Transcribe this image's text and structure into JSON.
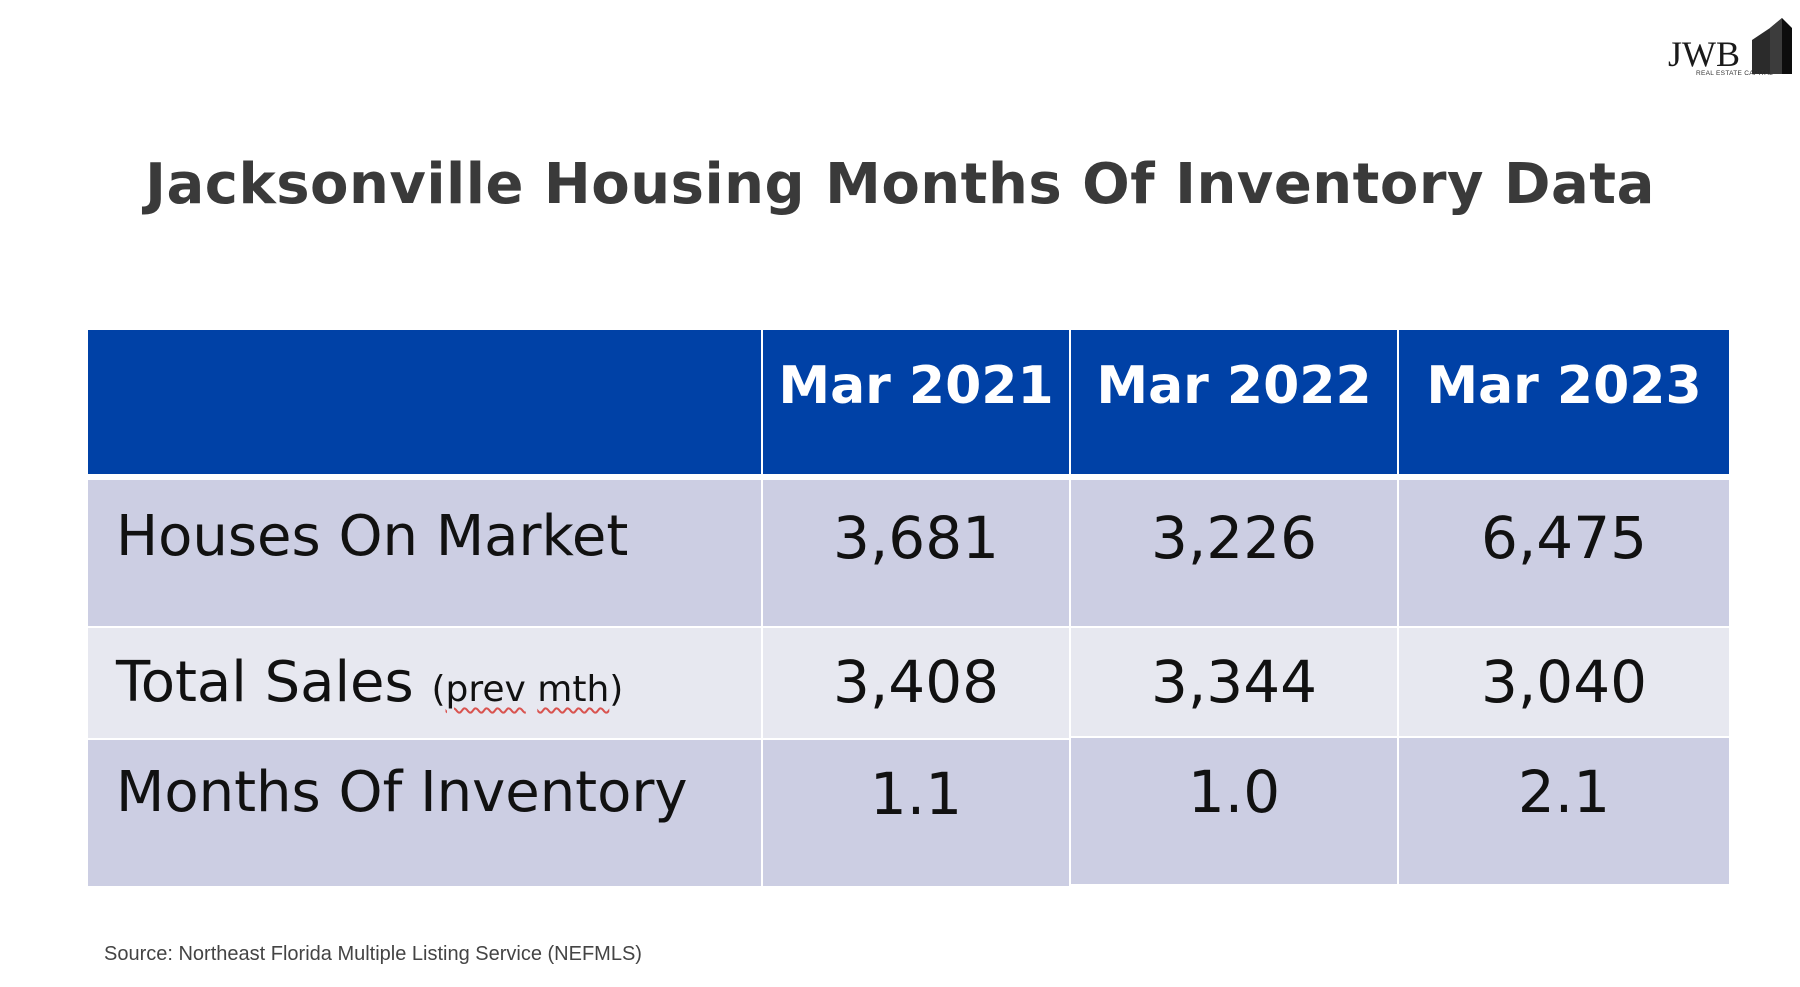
{
  "logo": {
    "text": "JWB",
    "subtext": "REAL ESTATE CAPITAL"
  },
  "title": "Jacksonville Housing Months Of Inventory Data",
  "table": {
    "headers": [
      "",
      "Mar 2021",
      "Mar 2022",
      "Mar 2023"
    ],
    "rows": [
      {
        "label": "Houses On Market",
        "note": "",
        "values": [
          "3,681",
          "3,226",
          "6,475"
        ]
      },
      {
        "label": "Total Sales",
        "note_open": "(",
        "note_word1": "prev",
        "note_space": " ",
        "note_word2": "mth",
        "note_close": ")",
        "values": [
          "3,408",
          "3,344",
          "3,040"
        ]
      },
      {
        "label": "Months Of Inventory",
        "note": "",
        "values": [
          "1.1",
          "1.0",
          "2.1"
        ]
      }
    ]
  },
  "source": "Source: Northeast Florida Multiple Listing Service (NEFMLS)",
  "colors": {
    "header_bg": "#0041a6",
    "row_dark": "#ccceE3",
    "row_light": "#e7e8f0"
  }
}
